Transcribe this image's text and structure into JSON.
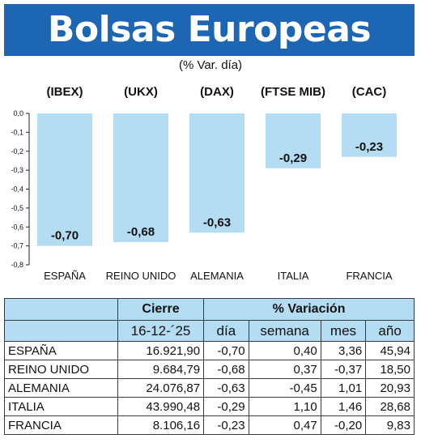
{
  "header": {
    "title": "Bolsas Europeas",
    "subtitle": "(% Var. día)"
  },
  "chart_data": {
    "type": "bar",
    "indices": [
      "(IBEX)",
      "(UKX)",
      "(DAX)",
      "(FTSE MIB)",
      "(CAC)"
    ],
    "categories": [
      "ESPAÑA",
      "REINO UNIDO",
      "ALEMANIA",
      "ITALIA",
      "FRANCIA"
    ],
    "values": [
      -0.7,
      -0.68,
      -0.63,
      -0.29,
      -0.23
    ],
    "value_labels": [
      "-0,70",
      "-0,68",
      "-0,63",
      "-0,29",
      "-0,23"
    ],
    "ylim": [
      -0.8,
      0.0
    ],
    "yticks": [
      0.0,
      -0.1,
      -0.2,
      -0.3,
      -0.4,
      -0.5,
      -0.6,
      -0.7,
      -0.8
    ],
    "ytick_labels": [
      "0,0",
      "-0,1",
      "-0,2",
      "-0,3",
      "-0,4",
      "-0,5",
      "-0,6",
      "-0,7",
      "-0,8"
    ],
    "bar_color": "#b4dcf3",
    "grid": false
  },
  "table": {
    "group_headers": {
      "close": "Cierre",
      "variation": "% Variación"
    },
    "date": "16-12-´25",
    "col_headers": [
      "día",
      "semana",
      "mes",
      "año"
    ],
    "rows": [
      {
        "name": "ESPAÑA",
        "close": "16.921,90",
        "dia": "-0,70",
        "semana": "0,40",
        "mes": "3,36",
        "ano": "45,94"
      },
      {
        "name": "REINO UNIDO",
        "close": "9.684,79",
        "dia": "-0,68",
        "semana": "0,37",
        "mes": "-0,37",
        "ano": "18,50"
      },
      {
        "name": "ALEMANIA",
        "close": "24.076,87",
        "dia": "-0,63",
        "semana": "-0,45",
        "mes": "1,01",
        "ano": "20,93"
      },
      {
        "name": "ITALIA",
        "close": "43.990,48",
        "dia": "-0,29",
        "semana": "1,10",
        "mes": "1,46",
        "ano": "28,68"
      },
      {
        "name": "FRANCIA",
        "close": "8.106,16",
        "dia": "-0,23",
        "semana": "0,47",
        "mes": "-0,20",
        "ano": "9,83"
      }
    ]
  }
}
